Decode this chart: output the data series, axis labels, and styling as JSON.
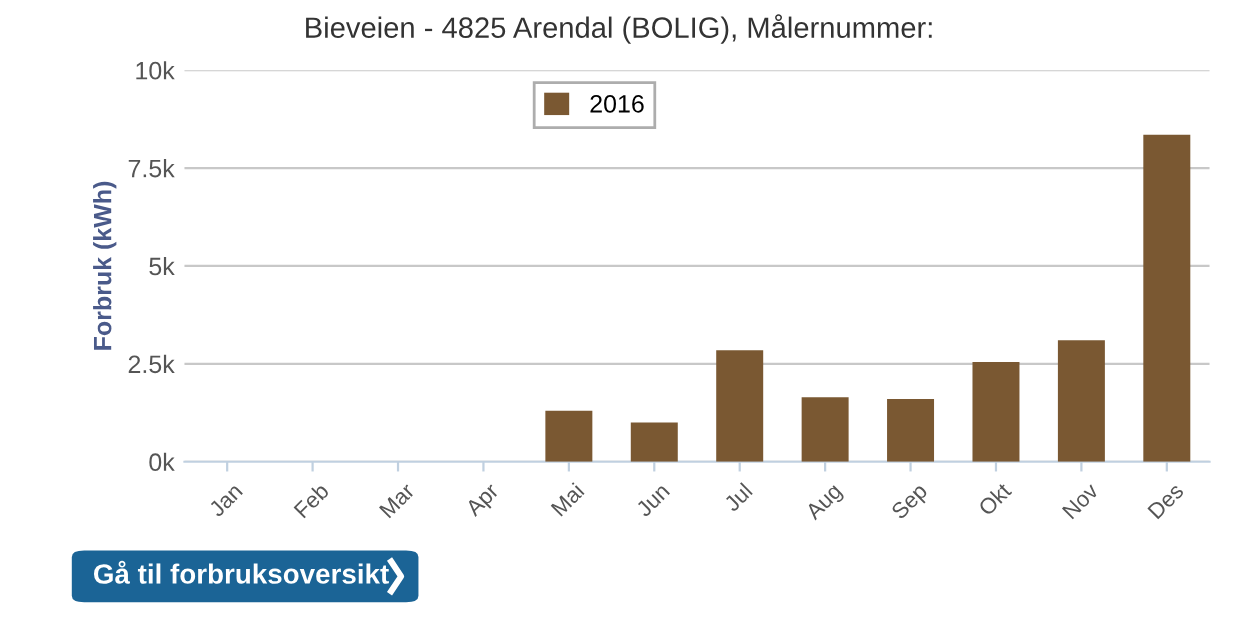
{
  "chart_data": {
    "type": "bar",
    "title": "Bieveien - 4825 Arendal (BOLIG), Målernummer:",
    "ylabel": "Forbruk (kWh)",
    "categories": [
      "Jan",
      "Feb",
      "Mar",
      "Apr",
      "Mai",
      "Jun",
      "Jul",
      "Aug",
      "Sep",
      "Okt",
      "Nov",
      "Des"
    ],
    "series": [
      {
        "name": "2016",
        "color": "#7a5832",
        "values": [
          0,
          0,
          0,
          0,
          1300,
          1000,
          2850,
          1650,
          1600,
          2550,
          3100,
          8350
        ]
      }
    ],
    "ylim": [
      0,
      10000
    ],
    "yticks": [
      {
        "value": 0,
        "label": "0k"
      },
      {
        "value": 2500,
        "label": "2.5k"
      },
      {
        "value": 5000,
        "label": "5k"
      },
      {
        "value": 7500,
        "label": "7.5k"
      },
      {
        "value": 10000,
        "label": "10k"
      }
    ],
    "grid": "y",
    "legend": "top",
    "annotations": [
      "Gå til forbruksoversikt"
    ]
  }
}
